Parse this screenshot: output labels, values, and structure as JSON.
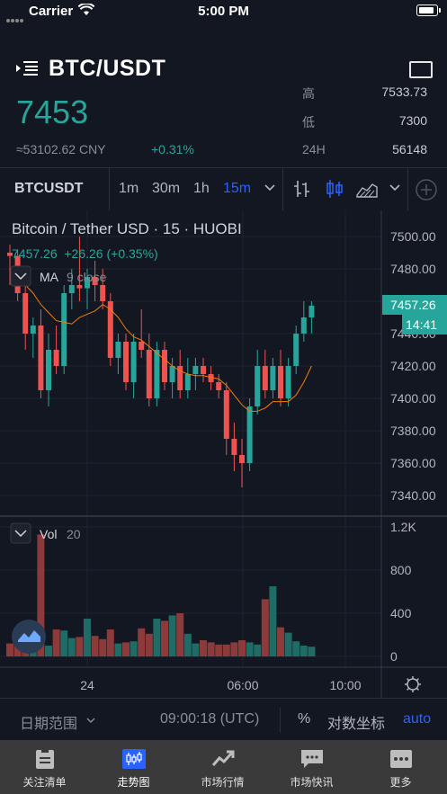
{
  "status_bar": {
    "carrier": "Carrier",
    "time": "5:00 PM"
  },
  "header": {
    "symbol": "BTC/USDT",
    "price": "7453",
    "cny": "≈53102.62 CNY",
    "change": "+0.31%",
    "stats": [
      {
        "label": "高",
        "value": "7533.73"
      },
      {
        "label": "低",
        "value": "7300"
      },
      {
        "label": "24H",
        "value": "56148"
      }
    ]
  },
  "toolbar": {
    "symbol": "BTCUSDT",
    "intervals": [
      "1m",
      "30m",
      "1h",
      "15m"
    ],
    "active_interval": "15m"
  },
  "chart": {
    "title": "Bitcoin / Tether USD · 15 · HUOBI",
    "ohlc_line": "7457.26  +26.26 (+0.35%)",
    "ma_label": "MA",
    "ma_params": "9 close",
    "vol_label": "Vol",
    "vol_params": "20",
    "last_price": "7457.26",
    "countdown": "14:41",
    "price_ticks": [
      "7500.00",
      "7480.00",
      "7460.00",
      "7440.00",
      "7420.00",
      "7400.00",
      "7380.00",
      "7360.00",
      "7340.00"
    ],
    "volume_ticks": [
      "1.2K",
      "800",
      "400",
      "0"
    ],
    "time_ticks": [
      "24",
      "06:00",
      "10:00"
    ],
    "colors": {
      "up": "#26a69a",
      "down": "#ef5350",
      "ma": "#f57c00",
      "accent": "#2962ff"
    }
  },
  "chart_data": {
    "type": "candlestick",
    "title": "Bitcoin / Tether USD · 15 · HUOBI",
    "y_range": [
      7335,
      7515
    ],
    "volume_range": [
      0,
      1200
    ],
    "candles": [
      {
        "o": 7490,
        "h": 7495,
        "l": 7470,
        "c": 7488
      },
      {
        "o": 7488,
        "h": 7492,
        "l": 7460,
        "c": 7465
      },
      {
        "o": 7465,
        "h": 7475,
        "l": 7430,
        "c": 7440
      },
      {
        "o": 7440,
        "h": 7450,
        "l": 7425,
        "c": 7445
      },
      {
        "o": 7445,
        "h": 7455,
        "l": 7400,
        "c": 7405
      },
      {
        "o": 7405,
        "h": 7440,
        "l": 7395,
        "c": 7430
      },
      {
        "o": 7430,
        "h": 7445,
        "l": 7415,
        "c": 7420
      },
      {
        "o": 7420,
        "h": 7470,
        "l": 7415,
        "c": 7465
      },
      {
        "o": 7465,
        "h": 7480,
        "l": 7455,
        "c": 7470
      },
      {
        "o": 7470,
        "h": 7500,
        "l": 7460,
        "c": 7468
      },
      {
        "o": 7468,
        "h": 7480,
        "l": 7455,
        "c": 7475
      },
      {
        "o": 7475,
        "h": 7485,
        "l": 7460,
        "c": 7470
      },
      {
        "o": 7470,
        "h": 7480,
        "l": 7455,
        "c": 7460
      },
      {
        "o": 7460,
        "h": 7465,
        "l": 7420,
        "c": 7425
      },
      {
        "o": 7425,
        "h": 7440,
        "l": 7415,
        "c": 7435
      },
      {
        "o": 7435,
        "h": 7440,
        "l": 7405,
        "c": 7410
      },
      {
        "o": 7410,
        "h": 7440,
        "l": 7400,
        "c": 7435
      },
      {
        "o": 7435,
        "h": 7455,
        "l": 7425,
        "c": 7430
      },
      {
        "o": 7430,
        "h": 7440,
        "l": 7395,
        "c": 7400
      },
      {
        "o": 7400,
        "h": 7435,
        "l": 7395,
        "c": 7430
      },
      {
        "o": 7430,
        "h": 7435,
        "l": 7405,
        "c": 7410
      },
      {
        "o": 7410,
        "h": 7425,
        "l": 7400,
        "c": 7420
      },
      {
        "o": 7420,
        "h": 7430,
        "l": 7400,
        "c": 7405
      },
      {
        "o": 7405,
        "h": 7425,
        "l": 7400,
        "c": 7415
      },
      {
        "o": 7415,
        "h": 7425,
        "l": 7405,
        "c": 7420
      },
      {
        "o": 7420,
        "h": 7425,
        "l": 7410,
        "c": 7415
      },
      {
        "o": 7415,
        "h": 7420,
        "l": 7405,
        "c": 7410
      },
      {
        "o": 7410,
        "h": 7415,
        "l": 7400,
        "c": 7405
      },
      {
        "o": 7405,
        "h": 7410,
        "l": 7365,
        "c": 7375
      },
      {
        "o": 7375,
        "h": 7385,
        "l": 7355,
        "c": 7365
      },
      {
        "o": 7365,
        "h": 7375,
        "l": 7345,
        "c": 7360
      },
      {
        "o": 7360,
        "h": 7400,
        "l": 7355,
        "c": 7395
      },
      {
        "o": 7395,
        "h": 7430,
        "l": 7390,
        "c": 7420
      },
      {
        "o": 7420,
        "h": 7430,
        "l": 7400,
        "c": 7405
      },
      {
        "o": 7405,
        "h": 7425,
        "l": 7400,
        "c": 7420
      },
      {
        "o": 7420,
        "h": 7430,
        "l": 7395,
        "c": 7400
      },
      {
        "o": 7400,
        "h": 7425,
        "l": 7395,
        "c": 7420
      },
      {
        "o": 7420,
        "h": 7445,
        "l": 7415,
        "c": 7440
      },
      {
        "o": 7440,
        "h": 7460,
        "l": 7435,
        "c": 7450
      },
      {
        "o": 7450,
        "h": 7460,
        "l": 7440,
        "c": 7457.26
      }
    ],
    "volumes": [
      120,
      130,
      140,
      110,
      1130,
      100,
      250,
      240,
      170,
      180,
      350,
      190,
      160,
      250,
      120,
      130,
      140,
      260,
      210,
      350,
      330,
      380,
      400,
      210,
      120,
      150,
      130,
      110,
      110,
      130,
      150,
      130,
      110,
      530,
      650,
      270,
      220,
      140,
      100,
      90
    ],
    "ma": [
      7480,
      7476,
      7470,
      7465,
      7458,
      7453,
      7448,
      7447,
      7446,
      7450,
      7452,
      7454,
      7458,
      7455,
      7450,
      7443,
      7438,
      7436,
      7432,
      7428,
      7424,
      7420,
      7417,
      7415,
      7414,
      7414,
      7413,
      7412,
      7408,
      7402,
      7396,
      7392,
      7392,
      7394,
      7398,
      7398,
      7398,
      7402,
      7410,
      7420
    ]
  },
  "bottom_bar": {
    "date_range": "日期范围",
    "time_display": "09:00:18 (UTC)",
    "percent": "%",
    "log": "对数坐标",
    "auto": "auto"
  },
  "tabs": [
    {
      "label": "关注清单",
      "icon": "clipboard-icon"
    },
    {
      "label": "走势图",
      "icon": "chart-icon",
      "active": true
    },
    {
      "label": "市场行情",
      "icon": "trend-icon"
    },
    {
      "label": "市场快讯",
      "icon": "chat-icon"
    },
    {
      "label": "更多",
      "icon": "more-icon"
    }
  ]
}
